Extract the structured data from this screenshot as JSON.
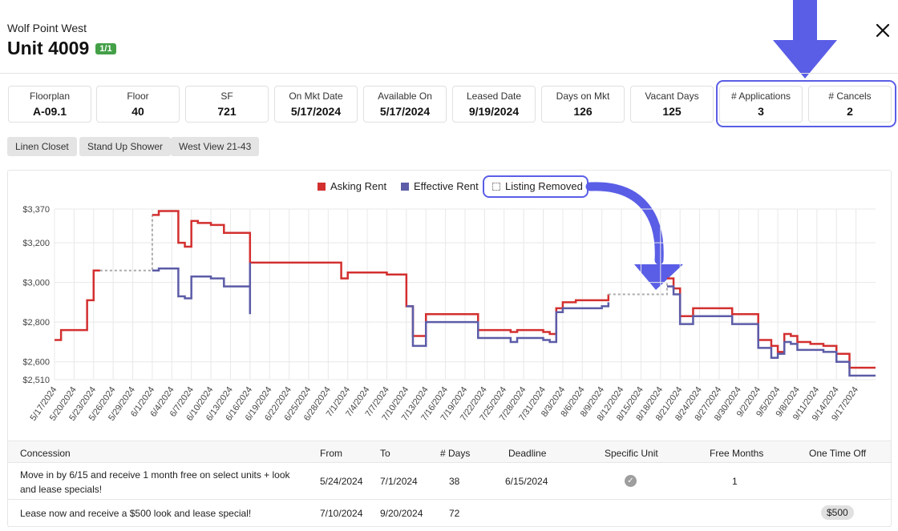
{
  "header": {
    "building": "Wolf Point West",
    "unit": "Unit 4009",
    "badge": "1/1",
    "close_icon": "close-icon"
  },
  "stats": [
    {
      "label": "Floorplan",
      "value": "A-09.1"
    },
    {
      "label": "Floor",
      "value": "40"
    },
    {
      "label": "SF",
      "value": "721"
    },
    {
      "label": "On Mkt Date",
      "value": "5/17/2024"
    },
    {
      "label": "Available On",
      "value": "5/17/2024"
    },
    {
      "label": "Leased Date",
      "value": "9/19/2024"
    },
    {
      "label": "Days on Mkt",
      "value": "126"
    },
    {
      "label": "Vacant Days",
      "value": "125"
    },
    {
      "label": "# Applications",
      "value": "3"
    },
    {
      "label": "# Cancels",
      "value": "2"
    }
  ],
  "tags": [
    "Linen Closet",
    "Stand Up Shower",
    "West View 21-43"
  ],
  "annotations": {
    "arrow_color": "#5a5ee6"
  },
  "chart_data": {
    "type": "line",
    "step": true,
    "legend": [
      {
        "name": "Asking Rent",
        "color": "#d32f2f"
      },
      {
        "name": "Effective Rent",
        "color": "#5c5ca8"
      },
      {
        "name": "Listing Removed",
        "color": "#aaaaaa"
      }
    ],
    "yticks": [
      "$3,370",
      "$3,200",
      "$3,000",
      "$2,800",
      "$2,600",
      "$2,510"
    ],
    "yvalues": [
      3370,
      3200,
      3000,
      2800,
      2600,
      2510
    ],
    "ylim": [
      2510,
      3370
    ],
    "xlim": [
      "5/17/2024",
      "9/20/2024"
    ],
    "xticks": [
      "5/17/2024",
      "5/20/2024",
      "5/23/2024",
      "5/26/2024",
      "5/29/2024",
      "6/1/2024",
      "6/4/2024",
      "6/7/2024",
      "6/10/2024",
      "6/13/2024",
      "6/16/2024",
      "6/19/2024",
      "6/22/2024",
      "6/25/2024",
      "6/28/2024",
      "7/1/2024",
      "7/4/2024",
      "7/7/2024",
      "7/10/2024",
      "7/13/2024",
      "7/16/2024",
      "7/19/2024",
      "7/22/2024",
      "7/25/2024",
      "7/28/2024",
      "7/31/2024",
      "8/3/2024",
      "8/6/2024",
      "8/9/2024",
      "8/12/2024",
      "8/15/2024",
      "8/18/2024",
      "8/21/2024",
      "8/24/2024",
      "8/27/2024",
      "8/30/2024",
      "9/2/2024",
      "9/5/2024",
      "9/8/2024",
      "9/11/2024",
      "9/14/2024",
      "9/17/2024"
    ],
    "grid": true,
    "series": [
      {
        "name": "Asking Rent",
        "color": "#d32f2f",
        "x": [
          "5/17/2024",
          "5/18/2024",
          "5/20/2024",
          "5/22/2024",
          "5/23/2024",
          "5/24/2024"
        ],
        "y": [
          2710,
          2760,
          2760,
          2910,
          3060,
          3060
        ]
      },
      {
        "name": "Listing Removed",
        "color": "#aaaaaa",
        "dashed": true,
        "x": [
          "5/24/2024",
          "6/1/2024",
          "6/1/2024"
        ],
        "y": [
          3060,
          3060,
          3340
        ]
      },
      {
        "name": "Asking Rent",
        "color": "#d32f2f",
        "x": [
          "6/1/2024",
          "6/2/2024",
          "6/4/2024",
          "6/5/2024",
          "6/6/2024",
          "6/7/2024",
          "6/8/2024",
          "6/10/2024",
          "6/12/2024",
          "6/14/2024",
          "6/16/2024",
          "6/29/2024",
          "6/30/2024",
          "7/1/2024",
          "7/7/2024",
          "7/8/2024",
          "7/10/2024",
          "7/11/2024",
          "7/13/2024",
          "7/16/2024",
          "7/19/2024",
          "7/21/2024",
          "7/25/2024",
          "7/26/2024",
          "7/27/2024",
          "7/30/2024",
          "7/31/2024",
          "8/1/2024",
          "8/2/2024",
          "8/3/2024",
          "8/4/2024",
          "8/5/2024",
          "8/6/2024",
          "8/9/2024",
          "8/10/2024"
        ],
        "y": [
          3340,
          3360,
          3360,
          3200,
          3180,
          3310,
          3300,
          3290,
          3250,
          3250,
          3100,
          3100,
          3020,
          3050,
          3040,
          3040,
          2880,
          2730,
          2840,
          2840,
          2840,
          2760,
          2760,
          2750,
          2760,
          2760,
          2750,
          2740,
          2870,
          2900,
          2900,
          2910,
          2910,
          2910,
          2940
        ]
      },
      {
        "name": "Listing Removed",
        "color": "#aaaaaa",
        "dashed": true,
        "x": [
          "8/10/2024",
          "8/18/2024",
          "8/19/2024"
        ],
        "y": [
          2940,
          2940,
          3000
        ]
      },
      {
        "name": "Asking Rent",
        "color": "#d32f2f",
        "x": [
          "8/19/2024",
          "8/20/2024",
          "8/21/2024",
          "8/23/2024",
          "8/27/2024",
          "8/28/2024",
          "8/29/2024",
          "9/2/2024",
          "9/3/2024",
          "9/4/2024",
          "9/5/2024",
          "9/6/2024",
          "9/7/2024",
          "9/8/2024",
          "9/10/2024",
          "9/12/2024",
          "9/14/2024",
          "9/16/2024",
          "9/20/2024"
        ],
        "y": [
          3020,
          2970,
          2830,
          2870,
          2870,
          2870,
          2840,
          2710,
          2710,
          2680,
          2650,
          2740,
          2730,
          2700,
          2690,
          2680,
          2640,
          2570,
          2570
        ]
      },
      {
        "name": "Effective Rent",
        "color": "#5c5ca8",
        "x": [
          "6/1/2024",
          "6/2/2024",
          "6/4/2024",
          "6/5/2024",
          "6/6/2024",
          "6/7/2024",
          "6/8/2024",
          "6/10/2024",
          "6/12/2024",
          "6/14/2024",
          "6/16/2024",
          "6/16/2024"
        ],
        "y": [
          3060,
          3070,
          3070,
          2930,
          2920,
          3030,
          3030,
          3020,
          2980,
          2980,
          2840,
          3100
        ]
      },
      {
        "name": "Effective Rent",
        "color": "#5c5ca8",
        "x": [
          "7/10/2024",
          "7/11/2024",
          "7/13/2024",
          "7/16/2024",
          "7/19/2024",
          "7/21/2024",
          "7/25/2024",
          "7/26/2024",
          "7/27/2024",
          "7/30/2024",
          "7/31/2024",
          "8/1/2024",
          "8/2/2024",
          "8/3/2024",
          "8/4/2024",
          "8/5/2024",
          "8/6/2024",
          "8/9/2024",
          "8/10/2024"
        ],
        "y": [
          2880,
          2680,
          2800,
          2800,
          2800,
          2720,
          2720,
          2700,
          2720,
          2720,
          2710,
          2700,
          2850,
          2870,
          2870,
          2870,
          2870,
          2880,
          2900
        ]
      },
      {
        "name": "Effective Rent",
        "color": "#5c5ca8",
        "x": [
          "8/19/2024",
          "8/20/2024",
          "8/21/2024",
          "8/23/2024",
          "8/27/2024",
          "8/28/2024",
          "8/29/2024",
          "9/2/2024",
          "9/3/2024",
          "9/4/2024",
          "9/5/2024",
          "9/6/2024",
          "9/7/2024",
          "9/8/2024",
          "9/10/2024",
          "9/12/2024",
          "9/14/2024",
          "9/16/2024",
          "9/20/2024"
        ],
        "y": [
          2980,
          2940,
          2790,
          2830,
          2830,
          2830,
          2790,
          2670,
          2670,
          2620,
          2640,
          2700,
          2690,
          2660,
          2660,
          2650,
          2600,
          2530,
          2530
        ]
      }
    ]
  },
  "concessions": {
    "headers": [
      "Concession",
      "From",
      "To",
      "# Days",
      "Deadline",
      "Specific Unit",
      "Free Months",
      "One Time Off"
    ],
    "rows": [
      {
        "concession": "Move in by 6/15 and receive 1 month free on select units + look and lease specials!",
        "from": "5/24/2024",
        "to": "7/1/2024",
        "days": "38",
        "deadline": "6/15/2024",
        "specific_unit": true,
        "specific_unit_icon": "check-circle-icon",
        "free_months": "1",
        "one_time_off": ""
      },
      {
        "concession": "Lease now and receive a $500 look and lease special!",
        "from": "7/10/2024",
        "to": "9/20/2024",
        "days": "72",
        "deadline": "",
        "specific_unit": false,
        "specific_unit_icon": "",
        "free_months": "",
        "one_time_off": "$500"
      }
    ]
  }
}
